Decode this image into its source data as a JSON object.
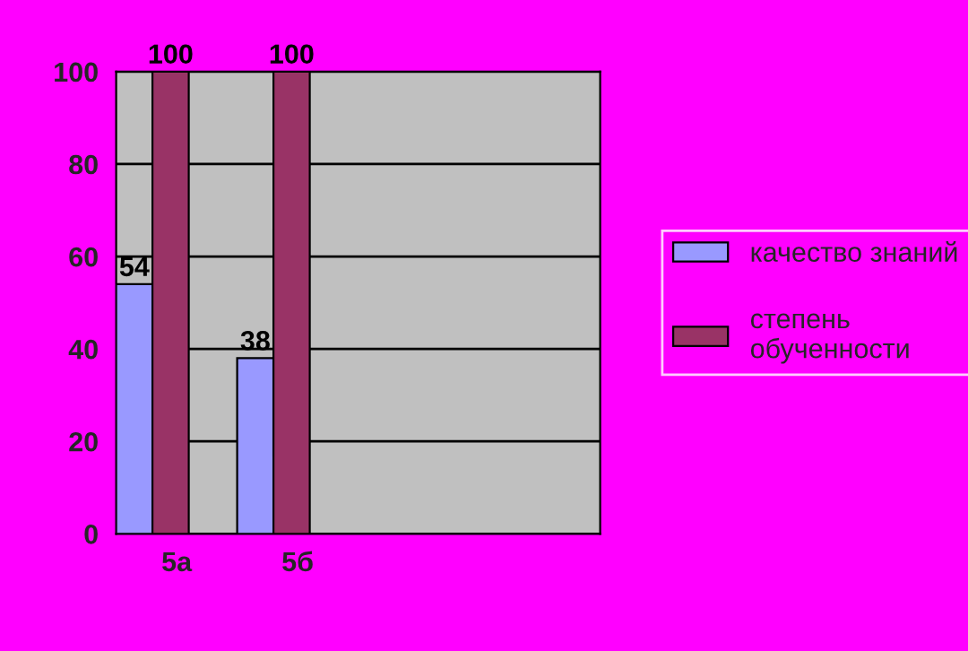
{
  "chart_data": {
    "type": "bar",
    "categories": [
      "5а",
      "5б",
      null,
      null
    ],
    "series": [
      {
        "name": "качество знаний",
        "color": "#9999ff",
        "values": [
          54,
          38,
          null,
          null
        ]
      },
      {
        "name": "степень обученности",
        "color": "#993366",
        "values": [
          100,
          100,
          null,
          null
        ]
      }
    ],
    "ylim": [
      0,
      100
    ],
    "yticks": [
      0,
      20,
      40,
      60,
      80,
      100
    ],
    "grid": "y",
    "legend": "right",
    "data_labels": true
  }
}
